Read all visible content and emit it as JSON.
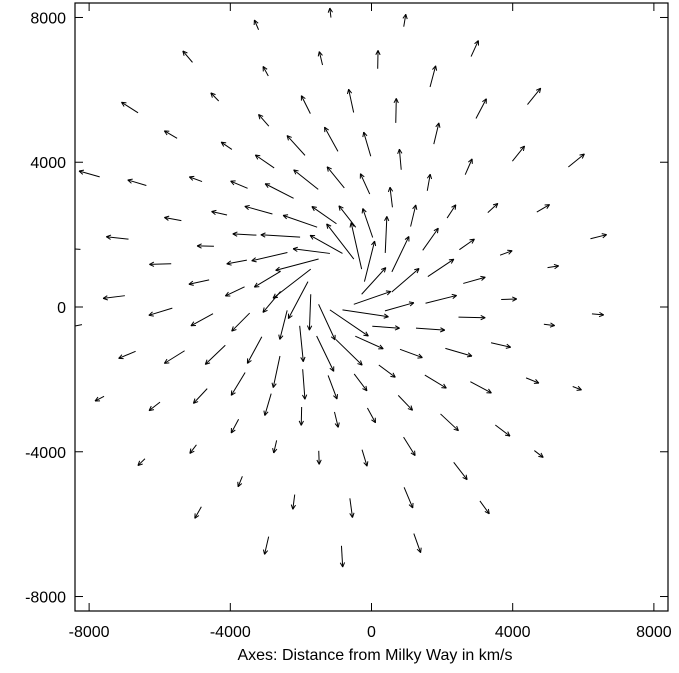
{
  "chart_data": {
    "type": "vector-field",
    "title": "",
    "xlabel": "Axes: Distance from Milky Way in km/s",
    "ylabel": "",
    "xlim": [
      -8400,
      8400
    ],
    "ylim": [
      -8400,
      8400
    ],
    "x_ticks": [
      -8000,
      -4000,
      0,
      4000,
      8000
    ],
    "y_ticks": [
      8000,
      4000,
      0,
      -4000,
      -8000
    ],
    "x_tick_labels": [
      "-8000",
      "-4000",
      "0",
      "4000",
      "8000"
    ],
    "y_tick_labels": [
      "8000",
      "4000",
      "0",
      "-4000",
      "-8000"
    ],
    "grid": false,
    "legend": "none",
    "colors": {
      "axes": "#000000",
      "vectors": "#000000",
      "background": "#ffffff"
    },
    "field": {
      "description_of_pattern": "radial outflow vectors with a circulating core",
      "center": [
        -1000,
        700
      ],
      "core_radius": 1300,
      "rings": [
        {
          "radius": 800,
          "count": 14
        },
        {
          "radius": 1600,
          "count": 18
        },
        {
          "radius": 2600,
          "count": 22
        },
        {
          "radius": 3600,
          "count": 24
        },
        {
          "radius": 4700,
          "count": 24
        },
        {
          "radius": 6000,
          "count": 24
        },
        {
          "radius": 7300,
          "count": 22
        }
      ]
    }
  }
}
